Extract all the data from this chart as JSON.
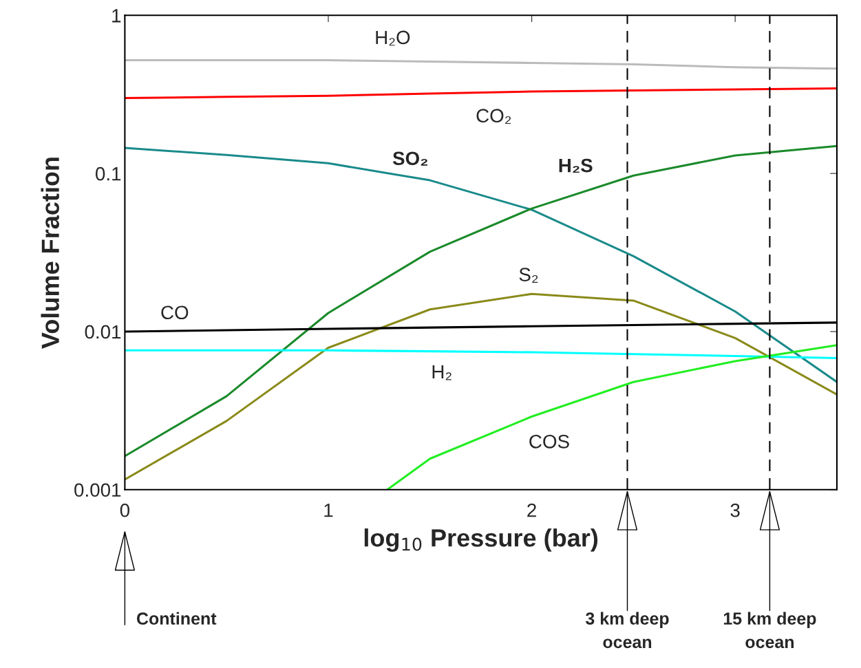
{
  "chart_data": {
    "type": "line",
    "xlabel": "log$_{10}$ Pressure (bar)",
    "ylabel": "Volume Fraction",
    "log": "y",
    "xlim": [
      0,
      3.5
    ],
    "ylim": [
      0.001,
      1
    ],
    "xticks": [
      0,
      1,
      2,
      3
    ],
    "yticks": [
      {
        "value": 0.001,
        "label": "0.001"
      },
      {
        "value": 0.01,
        "label": "0.01"
      },
      {
        "value": 0.1,
        "label": "0.1"
      },
      {
        "value": 1,
        "label": "1"
      }
    ],
    "grid": false,
    "legend": false,
    "line_style": "solid",
    "marker": "none",
    "x": [
      0,
      0.5,
      1,
      1.5,
      2,
      2.5,
      3,
      3.5
    ],
    "series": [
      {
        "color": "#bbbbbb",
        "values": [
          0.52,
          0.52,
          0.52,
          0.51,
          0.5,
          0.49,
          0.47,
          0.46
        ]
      },
      {
        "color": "#ff0000",
        "values": [
          0.3,
          0.305,
          0.31,
          0.32,
          0.33,
          0.335,
          0.34,
          0.345
        ]
      },
      {
        "color": "#1a8a8a",
        "values": [
          0.145,
          0.131,
          0.116,
          0.0905,
          0.0589,
          0.03,
          0.0134,
          0.0048
        ]
      },
      {
        "color": "#1a8a2a",
        "values": [
          0.00163,
          0.0039,
          0.0131,
          0.032,
          0.06,
          0.097,
          0.13,
          0.149
        ]
      },
      {
        "color": "#8a8a1a",
        "values": [
          0.00116,
          0.00272,
          0.0079,
          0.0138,
          0.0173,
          0.0157,
          0.0091,
          0.004
        ]
      },
      {
        "color": "#000000",
        "values": [
          0.01,
          0.0102,
          0.0104,
          0.0106,
          0.0108,
          0.011,
          0.0112,
          0.0114
        ]
      },
      {
        "color": "#00ffff",
        "values": [
          0.0076,
          0.0076,
          0.0076,
          0.0075,
          0.0074,
          0.0072,
          0.007,
          0.0068
        ]
      },
      {
        "color": "#22ee22",
        "x": [
          1.29,
          1.5,
          2,
          2.5,
          3,
          3.5
        ],
        "values": [
          0.001,
          0.00157,
          0.0029,
          0.0048,
          0.0065,
          0.0082
        ]
      }
    ],
    "ref_lines": [
      {
        "axis": "x",
        "value": 2.47,
        "label": "3 km deep\nocean",
        "color": "#000000",
        "line_style": "dashed"
      },
      {
        "axis": "x",
        "value": 3.17,
        "label": "15 km deep\nocean",
        "color": "#000000",
        "line_style": "dashed"
      }
    ],
    "annotations": [
      "H₂O",
      "CO₂",
      "SO₂",
      "H₂S",
      "S₂",
      "CO",
      "H₂",
      "COS",
      "Continent"
    ]
  }
}
